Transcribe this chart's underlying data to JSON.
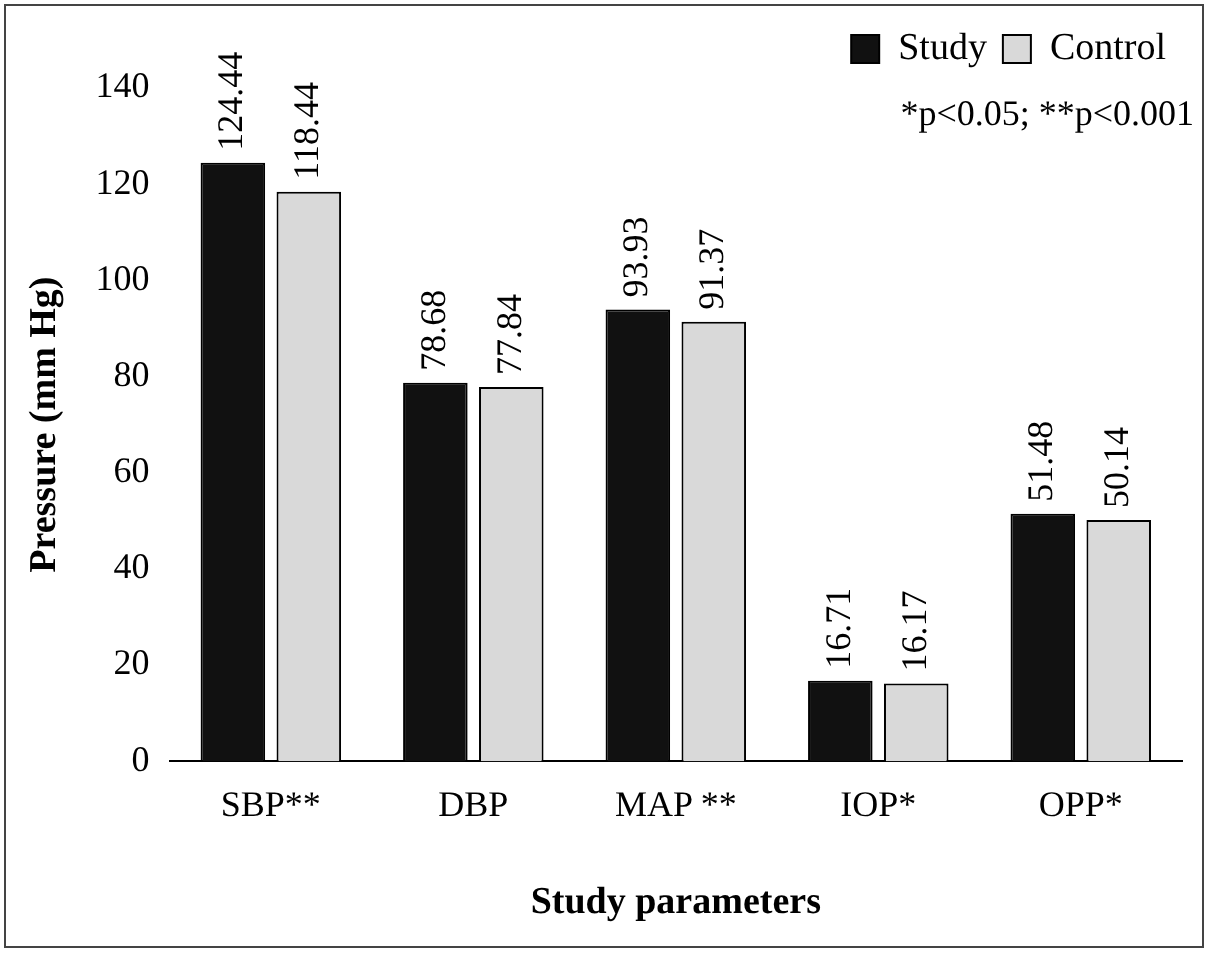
{
  "chart_data": {
    "type": "bar",
    "xlabel": "Study parameters",
    "ylabel": "Pressure (mm Hg)",
    "categories": [
      "SBP**",
      "DBP",
      "MAP **",
      "IOP*",
      "OPP*"
    ],
    "series": [
      {
        "name": "Study",
        "color": "#111111",
        "values": [
          124.44,
          78.68,
          93.93,
          16.71,
          51.48
        ]
      },
      {
        "name": "Control",
        "color": "#d9d9d9",
        "values": [
          118.44,
          77.84,
          91.37,
          16.17,
          50.14
        ]
      }
    ],
    "ylim": [
      0,
      140
    ],
    "yticks": [
      0,
      20,
      40,
      60,
      80,
      100,
      120,
      140
    ],
    "grid": false,
    "legend": "top right",
    "data_labels": true,
    "annotations": [
      "*p<0.05; **p<0.001"
    ]
  }
}
